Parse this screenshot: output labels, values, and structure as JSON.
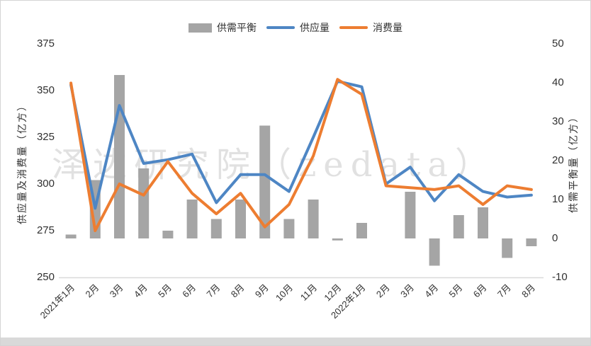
{
  "legend": {
    "balance_label": "供需平衡",
    "supply_label": "供应量",
    "consumption_label": "消费量"
  },
  "watermark_text": "泽达研究院（zedata）",
  "axes": {
    "left_title": "供应量及消费量（亿方）",
    "right_title": "供需平衡量（亿方）",
    "left_ticks": [
      375,
      350,
      325,
      300,
      275,
      250
    ],
    "right_ticks": [
      50,
      40,
      30,
      20,
      10,
      0,
      -10
    ]
  },
  "colors": {
    "supply": "#4E86C4",
    "consumption": "#ED7D31",
    "balance": "#A5A5A5",
    "axis_line": "#d9d9d9",
    "tick_text": "#303030"
  },
  "chart_data": {
    "type": "combo (bar + line)",
    "categories": [
      "2021年1月",
      "2月",
      "3月",
      "4月",
      "5月",
      "6月",
      "7月",
      "8月",
      "9月",
      "10月",
      "11月",
      "12月",
      "2022年1月",
      "2月",
      "3月",
      "4月",
      "5月",
      "6月",
      "7月",
      "8月"
    ],
    "series": [
      {
        "name": "供需平衡",
        "type": "bar",
        "axis": "right",
        "values": [
          1,
          15,
          42,
          18,
          2,
          10,
          5,
          10,
          29,
          5,
          10,
          -0.5,
          4,
          0,
          12,
          -7,
          6,
          8,
          -5,
          -2
        ]
      },
      {
        "name": "供应量",
        "type": "line",
        "axis": "left",
        "values": [
          353,
          287,
          342,
          311,
          313,
          316,
          290,
          305,
          305,
          296,
          325,
          355,
          352,
          300,
          309,
          291,
          305,
          296,
          293,
          294
        ]
      },
      {
        "name": "消费量",
        "type": "line",
        "axis": "left",
        "values": [
          354,
          275,
          300,
          294,
          312,
          295,
          284,
          295,
          277,
          289,
          315,
          356,
          348,
          299,
          298,
          297,
          299,
          289,
          299,
          297
        ]
      }
    ],
    "left_axis_range": [
      250,
      375
    ],
    "right_axis_range": [
      -10,
      50
    ],
    "ylabel_left": "供应量及消费量（亿方）",
    "ylabel_right": "供需平衡量（亿方）",
    "grid": false,
    "legend_position": "top"
  }
}
